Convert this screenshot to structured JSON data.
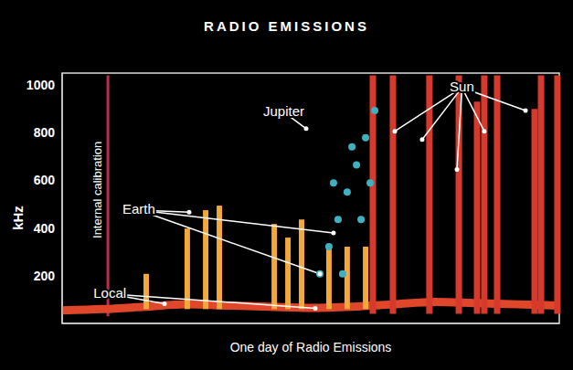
{
  "chart_data": {
    "type": "spectrogram",
    "title": "RADIO EMISSIONS",
    "x_label": "One day of Radio Emissions",
    "y_label": "kHz",
    "xlim": [
      0,
      24
    ],
    "ylim": [
      0,
      1050
    ],
    "yticks": [
      200,
      400,
      600,
      800,
      1000
    ],
    "tick_labels": "y",
    "grid": false,
    "series": [
      {
        "name": "Internal calibration",
        "type": "burst",
        "color": "#c22a56",
        "x": [
          2.21
        ],
        "low": [
          30
        ],
        "high": [
          1040
        ],
        "label": [
          1.75,
          560
        ],
        "targets": []
      },
      {
        "name": "Local",
        "type": "line",
        "color": "#e0462a",
        "x": [
          0,
          2,
          4,
          6,
          8,
          10,
          12,
          14,
          16,
          18,
          20,
          22,
          24
        ],
        "values": [
          55,
          60,
          70,
          80,
          75,
          70,
          65,
          70,
          80,
          90,
          85,
          80,
          75
        ],
        "label": [
          2.3,
          124
        ],
        "targets": [
          [
            4.94,
            82
          ],
          [
            12.22,
            63
          ]
        ]
      },
      {
        "name": "Earth",
        "type": "burst",
        "color": "#f2a83a",
        "x": [
          4.06,
          6.04,
          6.93,
          7.59,
          10.24,
          10.9,
          11.56,
          12.88,
          13.76,
          14.65
        ],
        "low": [
          60,
          60,
          60,
          60,
          60,
          60,
          60,
          60,
          60,
          60
        ],
        "high": [
          208,
          398,
          475,
          494,
          417,
          360,
          436,
          322,
          322,
          322
        ],
        "label": [
          3.7,
          475
        ],
        "targets": [
          [
            6.13,
            467
          ],
          [
            13.1,
            379
          ],
          [
            12.44,
            208
          ]
        ]
      },
      {
        "name": "Jupiter",
        "type": "scatter",
        "color": "#3fb0c0",
        "x": [
          12.44,
          12.88,
          13.32,
          13.76,
          14.21,
          14.65,
          15.09,
          13.1,
          13.99,
          14.43,
          14.87,
          13.54
        ],
        "values": [
          208,
          322,
          436,
          551,
          665,
          779,
          893,
          589,
          741,
          436,
          589,
          208
        ],
        "label": [
          10.7,
          887
        ],
        "targets": [
          [
            11.78,
            817
          ]
        ]
      },
      {
        "name": "Sun",
        "type": "burst",
        "color": "#d63a2c",
        "x": [
          15.0,
          15.97,
          17.73,
          19.15,
          20.03,
          20.38,
          21.0,
          22.81,
          23.12,
          23.91
        ],
        "low": [
          40,
          40,
          40,
          40,
          40,
          40,
          40,
          40,
          40,
          40
        ],
        "high": [
          1040,
          1040,
          1040,
          1040,
          930,
          1040,
          1040,
          900,
          1040,
          1040
        ],
        "label": [
          19.3,
          989
        ],
        "targets": [
          [
            16.06,
            806
          ],
          [
            17.38,
            771
          ],
          [
            19.06,
            646
          ],
          [
            20.38,
            806
          ],
          [
            22.37,
            893
          ]
        ]
      }
    ]
  }
}
